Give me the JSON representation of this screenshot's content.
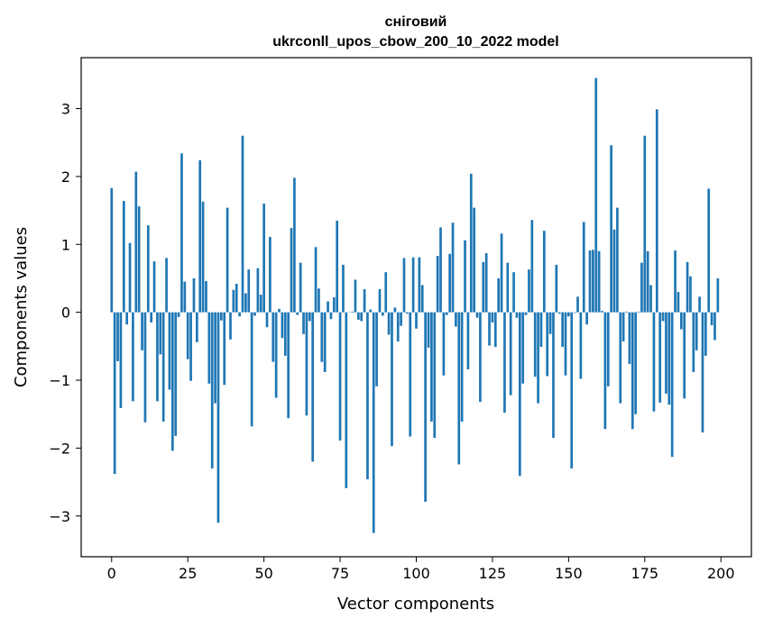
{
  "chart_data": {
    "type": "bar",
    "title_line1": "сніговий",
    "title_line2": "ukrconll_upos_cbow_200_10_2022 model",
    "xlabel": "Vector components",
    "ylabel": "Components values",
    "xlim": [
      -10,
      210
    ],
    "ylim": [
      -3.6,
      3.75
    ],
    "xticks": [
      0,
      25,
      50,
      75,
      100,
      125,
      150,
      175,
      200
    ],
    "yticks": [
      -3,
      -2,
      -1,
      0,
      1,
      2,
      3
    ],
    "color": "#1f77b4",
    "grid": false,
    "x": [
      0,
      1,
      2,
      3,
      4,
      5,
      6,
      7,
      8,
      9,
      10,
      11,
      12,
      13,
      14,
      15,
      16,
      17,
      18,
      19,
      20,
      21,
      22,
      23,
      24,
      25,
      26,
      27,
      28,
      29,
      30,
      31,
      32,
      33,
      34,
      35,
      36,
      37,
      38,
      39,
      40,
      41,
      42,
      43,
      44,
      45,
      46,
      47,
      48,
      49,
      50,
      51,
      52,
      53,
      54,
      55,
      56,
      57,
      58,
      59,
      60,
      61,
      62,
      63,
      64,
      65,
      66,
      67,
      68,
      69,
      70,
      71,
      72,
      73,
      74,
      75,
      76,
      77,
      78,
      79,
      80,
      81,
      82,
      83,
      84,
      85,
      86,
      87,
      88,
      89,
      90,
      91,
      92,
      93,
      94,
      95,
      96,
      97,
      98,
      99,
      100,
      101,
      102,
      103,
      104,
      105,
      106,
      107,
      108,
      109,
      110,
      111,
      112,
      113,
      114,
      115,
      116,
      117,
      118,
      119,
      120,
      121,
      122,
      123,
      124,
      125,
      126,
      127,
      128,
      129,
      130,
      131,
      132,
      133,
      134,
      135,
      136,
      137,
      138,
      139,
      140,
      141,
      142,
      143,
      144,
      145,
      146,
      147,
      148,
      149,
      150,
      151,
      152,
      153,
      154,
      155,
      156,
      157,
      158,
      159,
      160,
      161,
      162,
      163,
      164,
      165,
      166,
      167,
      168,
      169,
      170,
      171,
      172,
      173,
      174,
      175,
      176,
      177,
      178,
      179,
      180,
      181,
      182,
      183,
      184,
      185,
      186,
      187,
      188,
      189,
      190,
      191,
      192,
      193,
      194,
      195,
      196,
      197,
      198,
      199
    ],
    "values": [
      1.83,
      -2.38,
      -0.72,
      -1.41,
      1.64,
      -0.18,
      1.02,
      -1.31,
      2.07,
      1.56,
      -0.56,
      -1.62,
      1.28,
      -0.15,
      0.75,
      -1.31,
      -0.62,
      -1.61,
      0.8,
      -1.14,
      -2.04,
      -1.82,
      -0.07,
      2.34,
      0.45,
      -0.69,
      -1.01,
      0.5,
      -0.44,
      2.24,
      1.63,
      0.46,
      -1.05,
      -2.3,
      -1.34,
      -3.1,
      -0.12,
      -1.07,
      1.54,
      -0.4,
      0.33,
      0.42,
      -0.06,
      2.6,
      0.28,
      0.63,
      -1.68,
      -0.05,
      0.65,
      0.26,
      1.6,
      -0.22,
      1.11,
      -0.73,
      -1.26,
      0.05,
      -0.38,
      -0.64,
      -1.56,
      1.24,
      1.98,
      -0.04,
      0.73,
      -0.32,
      -1.52,
      -0.13,
      -2.2,
      0.96,
      0.35,
      -0.73,
      -0.88,
      0.16,
      -0.1,
      0.22,
      1.35,
      -1.89,
      0.7,
      -2.59,
      0.0,
      0.01,
      0.48,
      -0.11,
      -0.13,
      0.34,
      -2.46,
      0.04,
      -3.25,
      -1.09,
      0.34,
      -0.05,
      0.59,
      -0.33,
      -1.97,
      0.07,
      -0.43,
      -0.2,
      0.8,
      -0.02,
      -1.83,
      0.81,
      -0.24,
      0.81,
      0.4,
      -2.79,
      -0.52,
      -1.61,
      -1.85,
      0.83,
      1.25,
      -0.93,
      -0.04,
      0.86,
      1.32,
      -0.21,
      -2.24,
      -1.61,
      1.06,
      -0.84,
      2.04,
      1.54,
      -0.08,
      -1.32,
      0.74,
      0.87,
      -0.49,
      -0.15,
      -0.51,
      0.5,
      1.16,
      -1.48,
      0.73,
      -1.22,
      0.59,
      -0.08,
      -2.41,
      -1.05,
      -0.04,
      0.63,
      1.36,
      -0.95,
      -1.34,
      -0.51,
      1.2,
      -0.94,
      -0.32,
      -1.85,
      0.7,
      -0.02,
      -0.51,
      -0.93,
      -0.06,
      -2.3,
      -0.01,
      0.23,
      -0.98,
      1.33,
      -0.18,
      0.91,
      0.92,
      3.45,
      0.9,
      0.02,
      -1.72,
      -1.09,
      2.46,
      1.22,
      1.54,
      -1.34,
      -0.43,
      0.01,
      -0.76,
      -1.72,
      -1.5,
      0.01,
      0.73,
      2.6,
      0.9,
      0.4,
      -1.46,
      2.99,
      -1.33,
      -0.13,
      -1.2,
      -1.36,
      -2.13,
      0.91,
      0.3,
      -0.25,
      -1.27,
      0.74,
      0.53,
      -0.88,
      -0.56,
      0.23,
      -1.77,
      -0.64,
      1.82,
      -0.19,
      -0.41,
      0.5
    ]
  }
}
